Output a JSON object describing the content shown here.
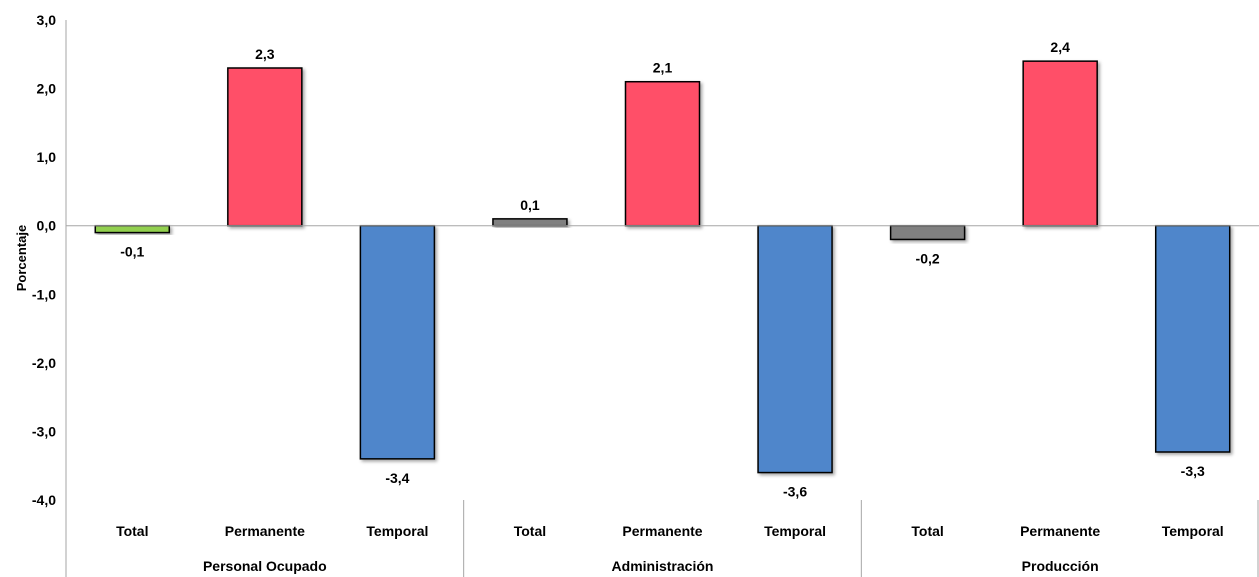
{
  "chart_data": {
    "type": "bar",
    "ylabel": "Porcentaje",
    "ylim": [
      -4,
      3
    ],
    "yticks": [
      "3,0",
      "2,0",
      "1,0",
      "0,0",
      "-1,0",
      "-2,0",
      "-3,0",
      "-4,0"
    ],
    "groups": [
      "Personal Ocupado",
      "Administración",
      "Producción"
    ],
    "categories": [
      "Total",
      "Permanente",
      "Temporal"
    ],
    "bars": [
      {
        "group": "Personal Ocupado",
        "category": "Total",
        "value": -0.1,
        "label": "-0,1",
        "color": "#92d050"
      },
      {
        "group": "Personal Ocupado",
        "category": "Permanente",
        "value": 2.3,
        "label": "2,3",
        "color": "#ff5068"
      },
      {
        "group": "Personal Ocupado",
        "category": "Temporal",
        "value": -3.4,
        "label": "-3,4",
        "color": "#4f86cb"
      },
      {
        "group": "Administración",
        "category": "Total",
        "value": 0.1,
        "label": "0,1",
        "color": "#808080"
      },
      {
        "group": "Administración",
        "category": "Permanente",
        "value": 2.1,
        "label": "2,1",
        "color": "#ff5068"
      },
      {
        "group": "Administración",
        "category": "Temporal",
        "value": -3.6,
        "label": "-3,6",
        "color": "#4f86cb"
      },
      {
        "group": "Producción",
        "category": "Total",
        "value": -0.2,
        "label": "-0,2",
        "color": "#808080"
      },
      {
        "group": "Producción",
        "category": "Permanente",
        "value": 2.4,
        "label": "2,4",
        "color": "#ff5068"
      },
      {
        "group": "Producción",
        "category": "Temporal",
        "value": -3.3,
        "label": "-3,3",
        "color": "#4f86cb"
      }
    ]
  }
}
